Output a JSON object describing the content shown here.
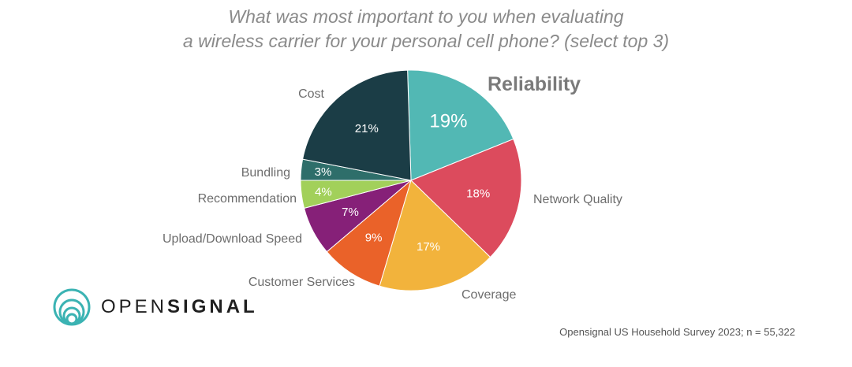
{
  "chart_data": {
    "type": "pie",
    "title": [
      "What was most important to you when evaluating",
      "a wireless carrier for your personal cell phone? (select top 3)"
    ],
    "slices": [
      {
        "label": "Reliability",
        "value": 19,
        "display": "19%",
        "color": "#52b8b4",
        "emphasis": true
      },
      {
        "label": "Network Quality",
        "value": 18,
        "display": "18%",
        "color": "#dc4b5d"
      },
      {
        "label": "Coverage",
        "value": 17,
        "display": "17%",
        "color": "#f2b33c"
      },
      {
        "label": "Customer Services",
        "value": 9,
        "display": "9%",
        "color": "#ea6229"
      },
      {
        "label": "Upload/Download Speed",
        "value": 7,
        "display": "7%",
        "color": "#862078"
      },
      {
        "label": "Recommendation",
        "value": 4,
        "display": "4%",
        "color": "#a2d05a"
      },
      {
        "label": "Bundling",
        "value": 3,
        "display": "3%",
        "color": "#2e6e6a"
      },
      {
        "label": "Cost",
        "value": 21,
        "display": "21%",
        "color": "#1b3d46"
      }
    ]
  },
  "logo": {
    "text_light": "OPEN",
    "text_bold": "SIGNAL",
    "icon": "opensignal-rings-icon",
    "color": "#3bb3b3"
  },
  "source_note": "Opensignal US Household Survey 2023; n = 55,322"
}
